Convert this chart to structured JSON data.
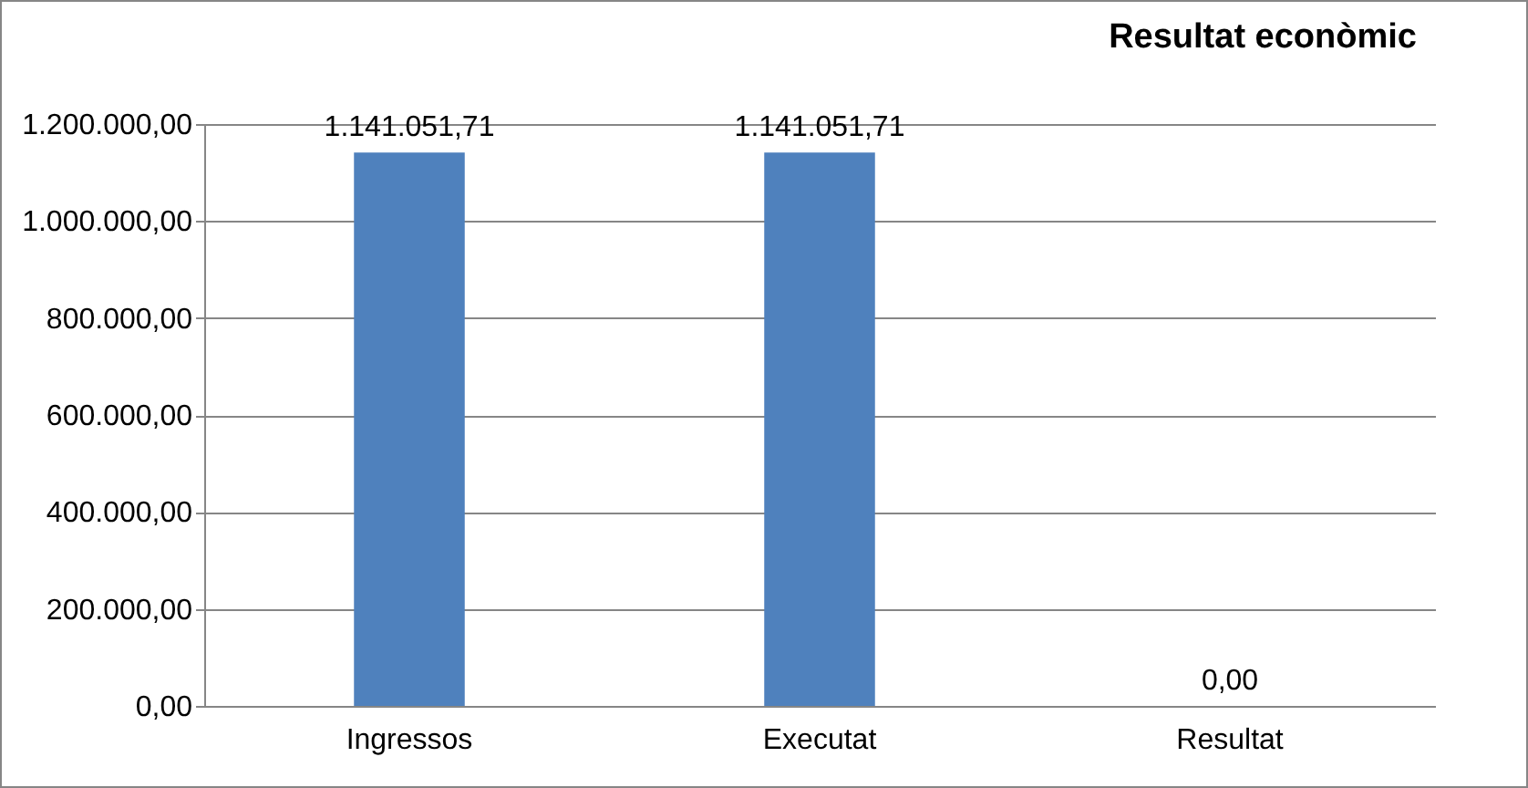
{
  "chart_data": {
    "type": "bar",
    "title": "Resultat econòmic",
    "categories": [
      "Ingressos",
      "Executat",
      "Resultat"
    ],
    "values": [
      1141051.71,
      1141051.71,
      0
    ],
    "value_labels": [
      "1.141.051,71",
      "1.141.051,71",
      "0,00"
    ],
    "color": "#4f81bd",
    "ylim": [
      0,
      1200000
    ],
    "yticks": [
      {
        "value": 0,
        "label": "0,00"
      },
      {
        "value": 200000,
        "label": "200.000,00"
      },
      {
        "value": 400000,
        "label": "400.000,00"
      },
      {
        "value": 600000,
        "label": "600.000,00"
      },
      {
        "value": 800000,
        "label": "800.000,00"
      },
      {
        "value": 1000000,
        "label": "1.000.000,00"
      },
      {
        "value": 1200000,
        "label": "1.200.000,00"
      }
    ],
    "grid": "y"
  }
}
